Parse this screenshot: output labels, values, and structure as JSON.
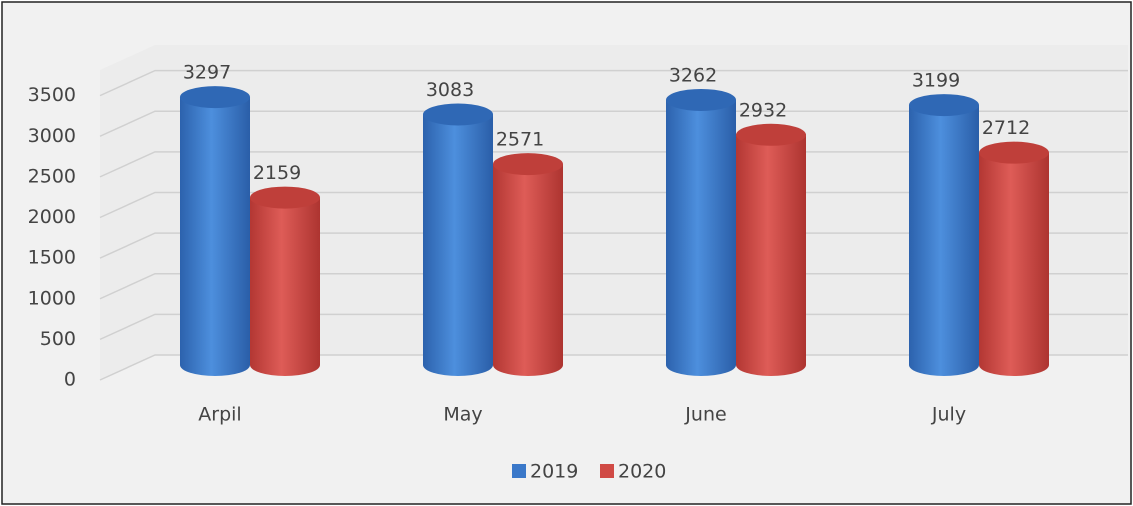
{
  "chart_data": {
    "type": "bar3d",
    "categories": [
      "Arpil",
      "May",
      "June",
      "July"
    ],
    "series": [
      {
        "name": "2019",
        "color": "#3a78c9",
        "values": [
          3297,
          3083,
          3262,
          3199
        ]
      },
      {
        "name": "2020",
        "color": "#d04a45",
        "values": [
          2159,
          2571,
          2932,
          2712
        ]
      }
    ],
    "ylim": [
      0,
      4000
    ],
    "yticks": [
      0,
      500,
      1000,
      1500,
      2000,
      2500,
      3000,
      3500
    ],
    "grid": true,
    "legend": "bottom"
  }
}
